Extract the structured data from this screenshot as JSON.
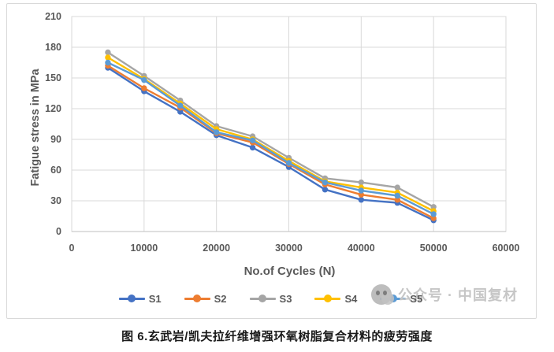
{
  "chart_data": {
    "type": "line",
    "title": "",
    "xlabel": "No.of Cycles (N)",
    "ylabel": "Fatigue stress in MPa",
    "xlim": [
      0,
      60000
    ],
    "ylim": [
      0,
      210
    ],
    "x_ticks": [
      0,
      10000,
      20000,
      30000,
      40000,
      50000,
      60000
    ],
    "y_ticks": [
      0,
      30,
      60,
      90,
      120,
      150,
      180,
      210
    ],
    "grid": true,
    "legend_position": "bottom",
    "x": [
      5000,
      10000,
      15000,
      20000,
      25000,
      30000,
      35000,
      40000,
      45000,
      50000
    ],
    "series": [
      {
        "name": "S1",
        "color": "#4472C4",
        "values": [
          160,
          137,
          117,
          94,
          82,
          63,
          41,
          31,
          28,
          11
        ]
      },
      {
        "name": "S2",
        "color": "#ED7D31",
        "values": [
          162,
          140,
          121,
          96,
          87,
          66,
          46,
          36,
          31,
          13
        ]
      },
      {
        "name": "S3",
        "color": "#A5A5A5",
        "values": [
          175,
          152,
          128,
          103,
          93,
          72,
          52,
          48,
          43,
          24
        ]
      },
      {
        "name": "S4",
        "color": "#FFC000",
        "values": [
          170,
          149,
          125,
          100,
          90,
          69,
          49,
          43,
          38,
          20
        ]
      },
      {
        "name": "S5",
        "color": "#5B9BD5",
        "values": [
          165,
          148,
          123,
          97,
          89,
          67,
          48,
          40,
          35,
          17
        ]
      }
    ],
    "grid_color": "#D9D9D9",
    "axis_line_color": "#BFBFBF",
    "tick_text_color": "#595959"
  },
  "watermark": {
    "text": "公众号 · 中国复材"
  },
  "caption": "图 6.玄武岩/凯夫拉纤维增强环氧树脂复合材料的疲劳强度"
}
